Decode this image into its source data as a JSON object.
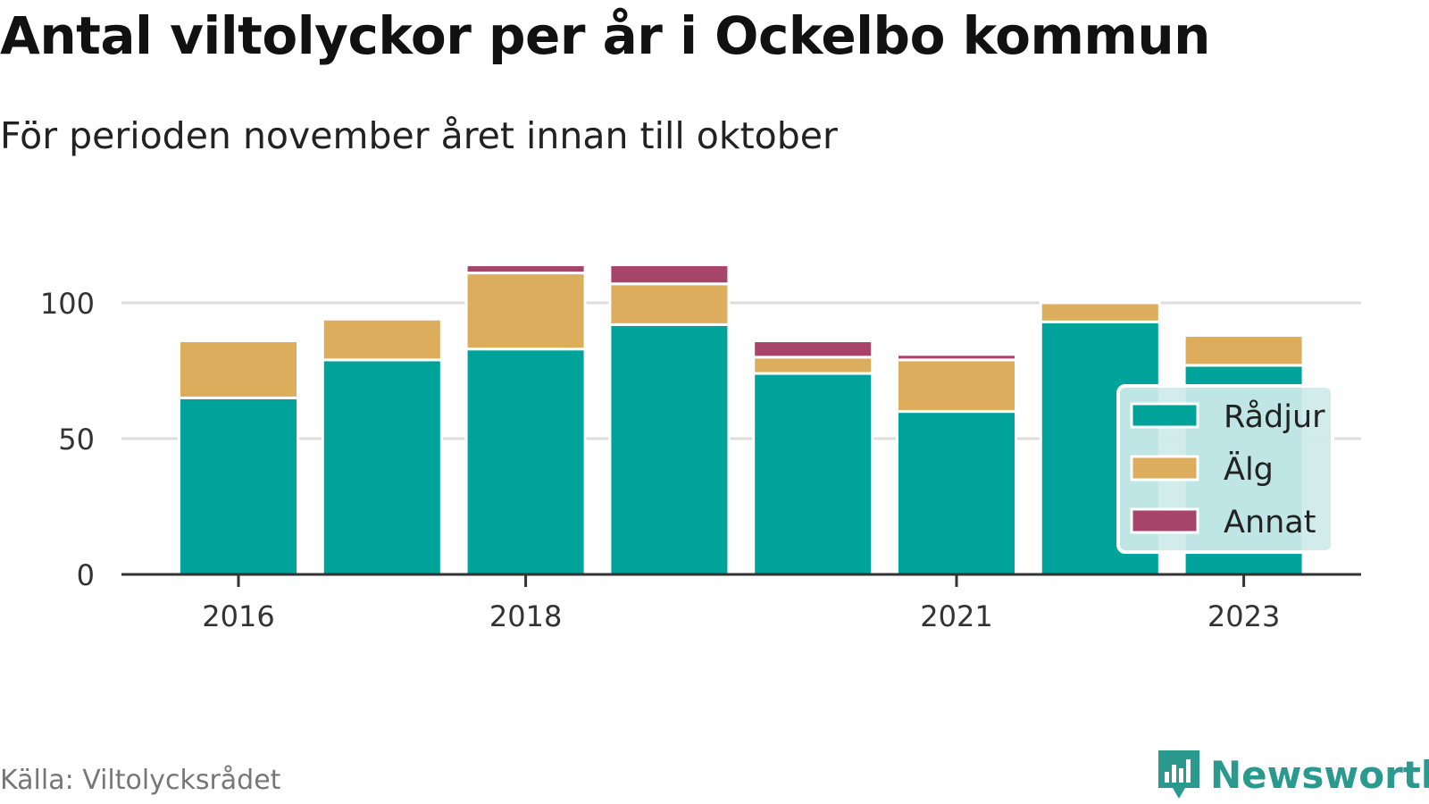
{
  "header": {
    "title": "Antal viltolyckor per år i Ockelbo kommun",
    "subtitle": "För perioden november året innan till oktober"
  },
  "footer": {
    "source": "Källa: Viltolycksrådet",
    "brand": "Newsworthy",
    "brand_icon": "newsworthy-logo-icon"
  },
  "colors": {
    "Rådjur": "#00a39a",
    "Älg": "#dbad5c",
    "Annat": "#a7446a",
    "legend_bg": "#cdebe9",
    "grid": "#dddddd",
    "axis": "#333333"
  },
  "chart_data": {
    "type": "bar",
    "stacked": true,
    "title": "Antal viltolyckor per år i Ockelbo kommun",
    "subtitle": "För perioden november året innan till oktober",
    "xlabel": "",
    "ylabel": "",
    "categories": [
      "2016",
      "2017",
      "2018",
      "2019",
      "2020",
      "2021",
      "2022",
      "2023"
    ],
    "x_tick_labels": [
      "2016",
      "2018",
      "2021",
      "2023"
    ],
    "y_ticks": [
      0,
      50,
      100
    ],
    "ylim": [
      0,
      117
    ],
    "grid": true,
    "legend_position": "right",
    "series": [
      {
        "name": "Rådjur",
        "values": [
          65,
          79,
          83,
          92,
          74,
          60,
          93,
          77
        ]
      },
      {
        "name": "Älg",
        "values": [
          21,
          15,
          28,
          15,
          6,
          19,
          7,
          11
        ]
      },
      {
        "name": "Annat",
        "values": [
          0,
          0,
          3,
          7,
          6,
          2,
          0,
          0
        ]
      }
    ]
  }
}
